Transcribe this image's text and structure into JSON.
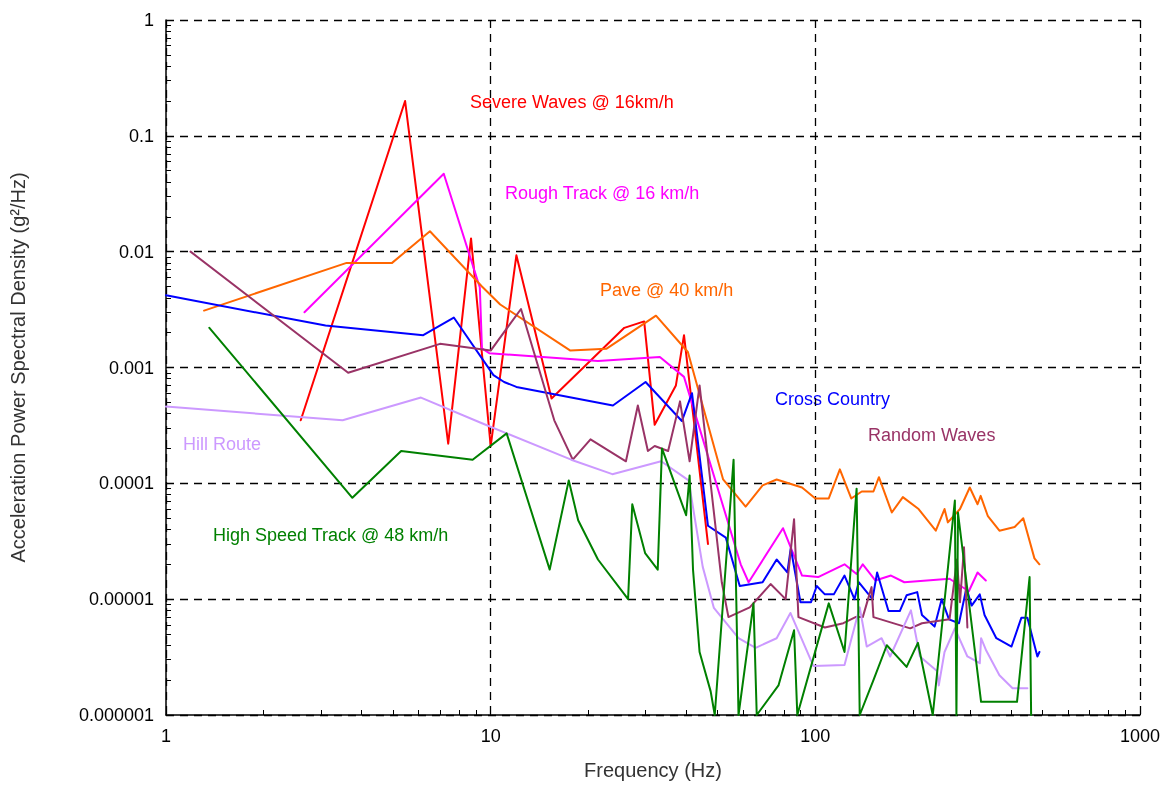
{
  "chart_data": {
    "type": "line",
    "xlabel": "Frequency (Hz)",
    "ylabel": "Acceleration Power Spectral Density (g²/Hz)",
    "log": "xy",
    "grid": true,
    "legend": false,
    "marker": "none",
    "line_style": "solid",
    "xlim": [
      1,
      1000
    ],
    "xticks": [
      1,
      10,
      100,
      1000
    ],
    "ylim": [
      1e-06,
      1
    ],
    "yticks": [
      {
        "value": 1e-06,
        "label": "0.000001"
      },
      {
        "value": 1e-05,
        "label": "0.00001"
      },
      0.0001,
      0.001,
      0.01,
      0.1,
      1
    ],
    "series": [
      {
        "name": "Severe Waves @ 16km/h",
        "color": "#ff0000",
        "x": [
          2.6,
          5.45,
          7.4,
          8.7,
          10,
          12,
          15.4,
          25.8,
          29.7,
          32,
          37.2,
          39.4,
          46.7
        ],
        "values": [
          0.00035,
          0.2,
          0.00022,
          0.013,
          0.00021,
          0.0093,
          0.00054,
          0.0022,
          0.0025,
          0.00032,
          0.0007,
          0.0019,
          3e-05
        ]
      },
      {
        "name": "Rough Track @ 16 km/h",
        "color": "#ff00ff",
        "x": [
          2.67,
          7.17,
          9.26,
          9.4,
          9.9,
          21.4,
          33.2,
          39.4,
          58.9,
          62.3,
          79.5,
          91,
          102,
          123,
          134,
          140,
          153,
          171,
          188,
          259,
          297,
          316,
          335
        ],
        "values": [
          0.003,
          0.047,
          0.0049,
          0.00146,
          0.00133,
          0.00114,
          0.00123,
          0.00083,
          2e-05,
          1.4e-05,
          4.1e-05,
          1.6e-05,
          1.55e-05,
          2e-05,
          1.65e-05,
          2e-05,
          1.45e-05,
          1.6e-05,
          1.4e-05,
          1.5e-05,
          1.17e-05,
          1.7e-05,
          1.45e-05
        ]
      },
      {
        "name": "Pave @ 40 km/h",
        "color": "#ff6600",
        "x": [
          1.31,
          3.6,
          4.97,
          6.5,
          9.4,
          10.7,
          17.6,
          22.7,
          32.3,
          40.5,
          52,
          61,
          68.8,
          76,
          91,
          100,
          110,
          119,
          129,
          139,
          151,
          157,
          172,
          186,
          208,
          235,
          250,
          256,
          279,
          299,
          316,
          323,
          340,
          369,
          411,
          437,
          473,
          490
        ],
        "values": [
          0.0031,
          0.008,
          0.008,
          0.015,
          0.005,
          0.0035,
          0.0014,
          0.00145,
          0.0028,
          0.00136,
          0.000108,
          6.3e-05,
          9.6e-05,
          0.000108,
          9.2e-05,
          7.4e-05,
          7.4e-05,
          0.000132,
          7.4e-05,
          8.5e-05,
          8.5e-05,
          0.000113,
          5.6e-05,
          7.6e-05,
          6e-05,
          3.9e-05,
          6e-05,
          4.6e-05,
          6e-05,
          9.2e-05,
          6.6e-05,
          7.8e-05,
          5.2e-05,
          3.9e-05,
          4.2e-05,
          5e-05,
          2.25e-05,
          2e-05
        ]
      },
      {
        "name": "Cross Country",
        "color": "#0000ff",
        "x": [
          1,
          3.1,
          6.2,
          7.7,
          10.2,
          11,
          12,
          23.8,
          30,
          38.8,
          41.7,
          46.7,
          53,
          58.5,
          68.8,
          76,
          82,
          84,
          90,
          97,
          101,
          107,
          114,
          123,
          132,
          136,
          150,
          155,
          168,
          182,
          191,
          206,
          213,
          233,
          245,
          258,
          277,
          292,
          303,
          321,
          332,
          361,
          402,
          431,
          450,
          483,
          490
        ],
        "values": [
          0.0042,
          0.0023,
          0.0019,
          0.0027,
          0.00086,
          0.00075,
          0.00068,
          0.00047,
          0.00075,
          0.000345,
          0.0006,
          4.3e-05,
          3.4e-05,
          1.3e-05,
          1.4e-05,
          2.2e-05,
          1.7e-05,
          2.75e-05,
          9.4e-06,
          9.4e-06,
          1.3e-05,
          1.1e-05,
          1.1e-05,
          1.6e-05,
          1e-05,
          1.4e-05,
          1e-05,
          1.7e-05,
          7.9e-06,
          7.9e-06,
          1.08e-05,
          1.15e-05,
          7.3e-06,
          5.8e-06,
          1e-05,
          6.7e-06,
          6.2e-06,
          1.25e-05,
          8.8e-06,
          1.1e-05,
          7.3e-06,
          4.6e-06,
          3.9e-06,
          6.9e-06,
          6.9e-06,
          3.2e-06,
          3.5e-06
        ]
      },
      {
        "name": "Random Waves",
        "color": "#993366",
        "x": [
          1.19,
          3.64,
          6.98,
          9.1,
          10,
          12.4,
          15.7,
          17.9,
          20.3,
          26.1,
          28.4,
          30.5,
          32,
          35.2,
          38.3,
          41,
          44,
          51.5,
          54,
          62.8,
          72.8,
          81,
          86,
          88.7,
          107,
          122,
          133,
          140,
          149,
          151,
          196,
          213,
          259,
          273,
          279,
          287,
          294
        ],
        "values": [
          0.01,
          0.0009,
          0.0016,
          0.00145,
          0.0014,
          0.0032,
          0.00035,
          0.00016,
          0.00024,
          0.000155,
          0.00047,
          0.00019,
          0.00021,
          0.00019,
          0.00051,
          0.000155,
          0.0007,
          1.4e-05,
          7e-06,
          8.5e-06,
          1.35e-05,
          1e-05,
          4.9e-05,
          7e-06,
          5.7e-06,
          6.2e-06,
          7e-06,
          7e-06,
          1.27e-05,
          7e-06,
          5.6e-06,
          6.2e-06,
          6.7e-06,
          2.2e-05,
          9.4e-06,
          2.8e-05,
          5.7e-06
        ]
      },
      {
        "name": "Hill Route",
        "color": "#cc99ff",
        "x": [
          1,
          3.5,
          6.1,
          9.4,
          17.7,
          23.7,
          33.5,
          40.7,
          45,
          48.7,
          58,
          65.5,
          76,
          83.8,
          98.6,
          123,
          137,
          144,
          160,
          170,
          197,
          210,
          237,
          240,
          250,
          269,
          294,
          321,
          324,
          336,
          369,
          405,
          450
        ],
        "values": [
          0.00046,
          0.00035,
          0.00055,
          0.00033,
          0.00016,
          0.00012,
          0.000155,
          0.000106,
          1.9e-05,
          8.4e-06,
          4.6e-06,
          3.8e-06,
          4.6e-06,
          7.6e-06,
          2.65e-06,
          2.7e-06,
          8.5e-06,
          3.9e-06,
          4.6e-06,
          3.2e-06,
          8e-06,
          3.2e-06,
          2.4e-06,
          1.8e-06,
          3.5e-06,
          5.6e-06,
          3.2e-06,
          2.8e-06,
          4.6e-06,
          3.6e-06,
          2.2e-06,
          1.7e-06,
          1.7e-06
        ]
      },
      {
        "name": "High Speed Track @ 48 km/h",
        "color": "#008000",
        "x": [
          1.36,
          3.75,
          5.3,
          8.8,
          11.2,
          15.2,
          17.4,
          18.6,
          21.4,
          26.5,
          27.3,
          29.9,
          32.7,
          33.7,
          40,
          41,
          42,
          44,
          47.6,
          49,
          56,
          58,
          64.5,
          66,
          77,
          86,
          88,
          110,
          123,
          134,
          137,
          151,
          166,
          191,
          207,
          230,
          269,
          272,
          275,
          324,
          418,
          457,
          462
        ],
        "values": [
          0.0022,
          7.5e-05,
          0.00019,
          0.00016,
          0.00027,
          1.8e-05,
          0.000106,
          4.8e-05,
          2.2e-05,
          1e-05,
          6.6e-05,
          2.5e-05,
          1.8e-05,
          0.0002,
          5.3e-05,
          0.000117,
          1.8e-05,
          3.5e-06,
          1.6e-06,
          1e-06,
          0.00016,
          1e-06,
          9.2e-06,
          1e-06,
          1.8e-06,
          5.4e-06,
          1e-06,
          9.2e-06,
          3.5e-06,
          9e-05,
          1e-06,
          2e-06,
          4e-06,
          2.6e-06,
          4.2e-06,
          1e-06,
          7.1e-05,
          1e-06,
          5.6e-05,
          1.3e-06,
          1.3e-06,
          1.55e-05,
          1e-06
        ]
      }
    ]
  }
}
